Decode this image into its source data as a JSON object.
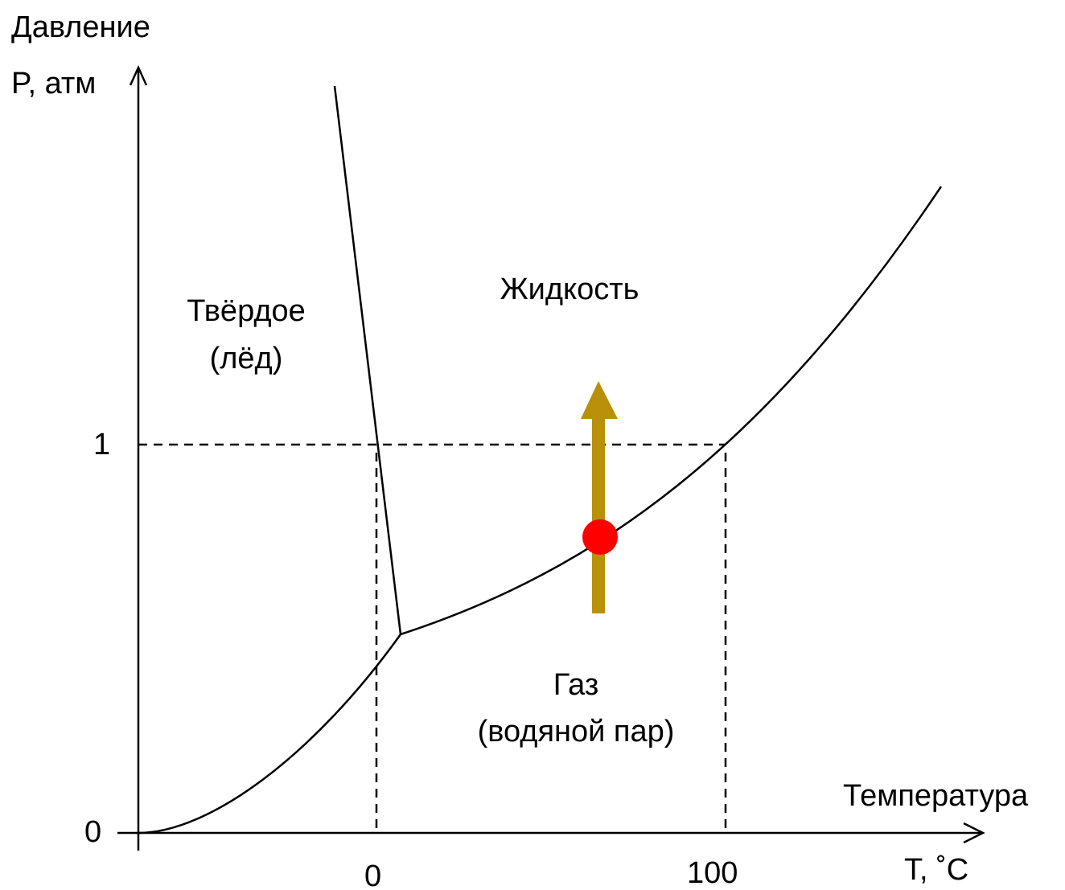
{
  "axes": {
    "y_label_line1": "Давление",
    "y_label_line2": "P, атм",
    "x_label_line1": "Температура",
    "x_label_line2": "T, ˚C",
    "y_ticks": [
      "0",
      "1"
    ],
    "x_ticks": [
      "0",
      "100"
    ]
  },
  "regions": {
    "solid_line1": "Твёрдое",
    "solid_line2": "(лёд)",
    "liquid": "Жидкость",
    "gas_line1": "Газ",
    "gas_line2": "(водяной пар)"
  },
  "colors": {
    "axes": "#000000",
    "curves": "#000000",
    "guide_lines": "#000000",
    "arrow": "#B8900A",
    "marker": "#FF0000"
  }
}
